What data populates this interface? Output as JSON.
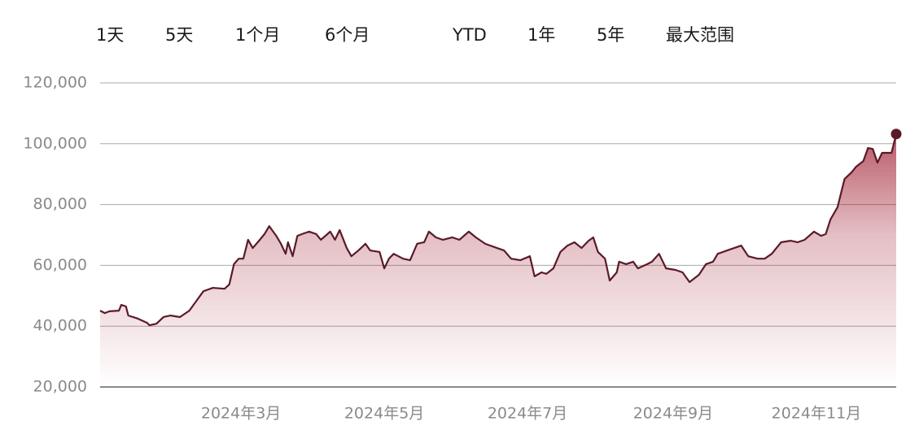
{
  "range_buttons": [
    "1天",
    "5天",
    "1个月",
    "6个月",
    "YTD",
    "1年",
    "5年",
    "最大范围"
  ],
  "chart_data": {
    "type": "area",
    "color": "#5a1a2a",
    "fill_color": "#9e1b2e",
    "xlim": [
      1,
      340
    ],
    "xticks": [
      {
        "value": 61,
        "label": "2024年3月"
      },
      {
        "value": 122,
        "label": "2024年5月"
      },
      {
        "value": 183,
        "label": "2024年7月"
      },
      {
        "value": 245,
        "label": "2024年9月"
      },
      {
        "value": 306,
        "label": "2024年11月"
      }
    ],
    "ylim": [
      20000,
      120000
    ],
    "yticks": [
      {
        "value": 20000,
        "label": "20,000"
      },
      {
        "value": 40000,
        "label": "40,000"
      },
      {
        "value": 60000,
        "label": "60,000"
      },
      {
        "value": 80000,
        "label": "80,000"
      },
      {
        "value": 100000,
        "label": "100,000"
      },
      {
        "value": 120000,
        "label": "120,000"
      }
    ],
    "grid": true,
    "x": [
      1,
      3,
      5,
      9,
      10,
      12,
      13,
      17,
      21,
      22,
      25,
      28,
      31,
      35,
      39,
      42,
      45,
      49,
      54,
      56,
      58,
      60,
      62,
      64,
      66,
      69,
      71,
      73,
      76,
      78,
      80,
      81,
      83,
      85,
      87,
      90,
      93,
      95,
      99,
      101,
      103,
      106,
      108,
      111,
      114,
      116,
      120,
      122,
      124,
      126,
      130,
      133,
      136,
      139,
      141,
      144,
      147,
      151,
      154,
      158,
      161,
      165,
      170,
      173,
      176,
      180,
      184,
      186,
      189,
      191,
      194,
      197,
      200,
      203,
      206,
      209,
      211,
      213,
      216,
      218,
      221,
      222,
      225,
      228,
      230,
      234,
      236,
      239,
      242,
      246,
      249,
      252,
      256,
      259,
      262,
      264,
      268,
      271,
      274,
      277,
      281,
      284,
      287,
      291,
      295,
      298,
      301,
      305,
      308,
      310,
      312,
      315,
      318,
      321,
      323,
      326,
      328,
      330,
      332,
      334,
      338,
      340
    ],
    "values": [
      45100,
      44300,
      44900,
      45100,
      47000,
      46500,
      43500,
      42500,
      41100,
      40300,
      40800,
      43000,
      43500,
      43000,
      45100,
      48300,
      51500,
      52600,
      52300,
      53700,
      60400,
      62200,
      62200,
      68400,
      65700,
      68400,
      70300,
      72900,
      69700,
      67100,
      63800,
      67600,
      63000,
      69700,
      70300,
      71100,
      70300,
      68400,
      71100,
      68400,
      71600,
      65700,
      63000,
      64900,
      67100,
      64900,
      64400,
      59000,
      62200,
      63800,
      62200,
      61700,
      67100,
      67600,
      71100,
      69200,
      68400,
      69200,
      68400,
      71100,
      69200,
      67100,
      65700,
      64900,
      62200,
      61700,
      63000,
      56400,
      57700,
      57200,
      59000,
      64400,
      66500,
      67600,
      65700,
      68100,
      69200,
      64400,
      62200,
      55000,
      57700,
      61200,
      60400,
      61200,
      59000,
      60400,
      61200,
      63800,
      59000,
      58500,
      57700,
      54500,
      56900,
      60400,
      61200,
      63800,
      64900,
      65700,
      66500,
      63000,
      62200,
      62200,
      63800,
      67600,
      68100,
      67600,
      68400,
      71100,
      69700,
      70300,
      75100,
      79100,
      88400,
      90600,
      92500,
      94300,
      98600,
      98300,
      93800,
      97000,
      97000,
      103200
    ]
  }
}
